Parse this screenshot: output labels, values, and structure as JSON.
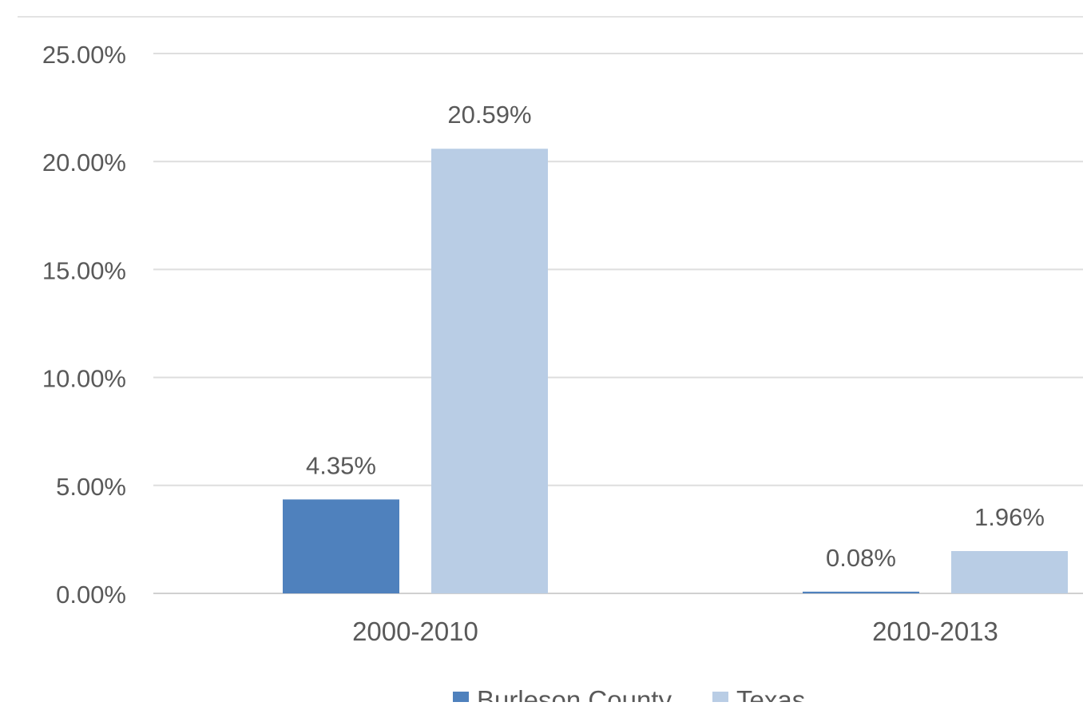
{
  "chart_data": {
    "type": "bar",
    "categories": [
      "2000-2010",
      "2010-2013"
    ],
    "series": [
      {
        "name": "Burleson County",
        "values": [
          4.35,
          0.08
        ],
        "labels": [
          "4.35%",
          "0.08%"
        ],
        "color": "#4f81bd"
      },
      {
        "name": "Texas",
        "values": [
          20.59,
          1.96
        ],
        "labels": [
          "20.59%",
          "1.96%"
        ],
        "color": "#b9cde5"
      }
    ],
    "ylim": [
      0,
      25
    ],
    "yticks": [
      0,
      5,
      10,
      15,
      20,
      25
    ],
    "ytick_labels": [
      "0.00%",
      "5.00%",
      "10.00%",
      "15.00%",
      "20.00%",
      "25.00%"
    ],
    "grid": true,
    "legend_position": "bottom"
  }
}
